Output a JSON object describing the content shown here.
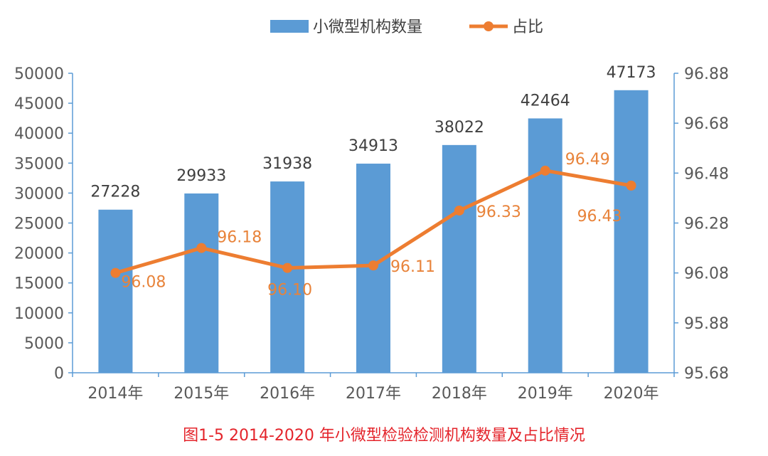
{
  "colors": {
    "bar": "#5b9bd5",
    "line": "#ed7d31",
    "line_label": "#e8833a",
    "axis": "#5b9bd5",
    "caption": "#e4242b"
  },
  "caption": "图1-5 2014-2020 年小微型检验检测机构数量及占比情况",
  "chart_data": {
    "type": "bar",
    "categories": [
      "2014年",
      "2015年",
      "2016年",
      "2017年",
      "2018年",
      "2019年",
      "2020年"
    ],
    "series": [
      {
        "name": "小微型机构数量",
        "type": "bar",
        "axis": "left",
        "values": [
          27228,
          29933,
          31938,
          34913,
          38022,
          42464,
          47173
        ],
        "labels": [
          "27228",
          "29933",
          "31938",
          "34913",
          "38022",
          "42464",
          "47173"
        ]
      },
      {
        "name": "占比",
        "type": "line",
        "axis": "right",
        "values": [
          96.08,
          96.18,
          96.1,
          96.11,
          96.33,
          96.49,
          96.43
        ],
        "labels": [
          "96.08",
          "96.18",
          "96.10",
          "96.11",
          "96.33",
          "96.49",
          "96.43"
        ]
      }
    ],
    "y_left": {
      "min": 0,
      "max": 50000,
      "ticks": [
        "0",
        "5000",
        "10000",
        "15000",
        "20000",
        "25000",
        "30000",
        "35000",
        "40000",
        "45000",
        "50000"
      ]
    },
    "y_right": {
      "min": 95.68,
      "max": 96.88,
      "ticks": [
        "95.68",
        "95.88",
        "96.08",
        "96.28",
        "96.48",
        "96.68",
        "96.88"
      ]
    },
    "legend_position": "top-center",
    "grid": false
  }
}
